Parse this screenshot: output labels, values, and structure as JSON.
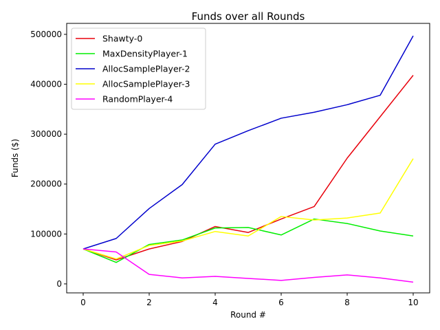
{
  "chart_data": {
    "type": "line",
    "title": "Funds over all Rounds",
    "xlabel": "Round #",
    "ylabel": "Funds ($)",
    "xlim": [
      -0.5,
      10.5
    ],
    "ylim": [
      -18000,
      522000
    ],
    "xticks": [
      0,
      2,
      4,
      6,
      8,
      10
    ],
    "yticks": [
      0,
      100000,
      200000,
      300000,
      400000,
      500000
    ],
    "grid": false,
    "legend_position": "top-left",
    "x": [
      0,
      1,
      2,
      3,
      4,
      5,
      6,
      7,
      8,
      9,
      10
    ],
    "series": [
      {
        "name": "Shawty-0",
        "color": "#e8000b",
        "values": [
          70000,
          48000,
          70000,
          85000,
          115000,
          103000,
          130000,
          155000,
          252000,
          335000,
          418000
        ]
      },
      {
        "name": "MaxDensityPlayer-1",
        "color": "#00ee00",
        "values": [
          70000,
          43000,
          79000,
          88000,
          112000,
          113000,
          98000,
          130000,
          121000,
          106000,
          96000
        ]
      },
      {
        "name": "AllocSamplePlayer-2",
        "color": "#0000cc",
        "values": [
          70000,
          91000,
          151000,
          199000,
          280000,
          307000,
          332000,
          344000,
          359000,
          378000,
          497000
        ]
      },
      {
        "name": "AllocSamplePlayer-3",
        "color": "#ffff00",
        "values": [
          70000,
          50000,
          77000,
          86000,
          105000,
          96000,
          135000,
          128000,
          132000,
          142000,
          251000
        ]
      },
      {
        "name": "RandomPlayer-4",
        "color": "#ff00ff",
        "values": [
          70000,
          64000,
          19000,
          12000,
          15000,
          11000,
          7000,
          13000,
          18000,
          12000,
          3500
        ]
      }
    ]
  }
}
